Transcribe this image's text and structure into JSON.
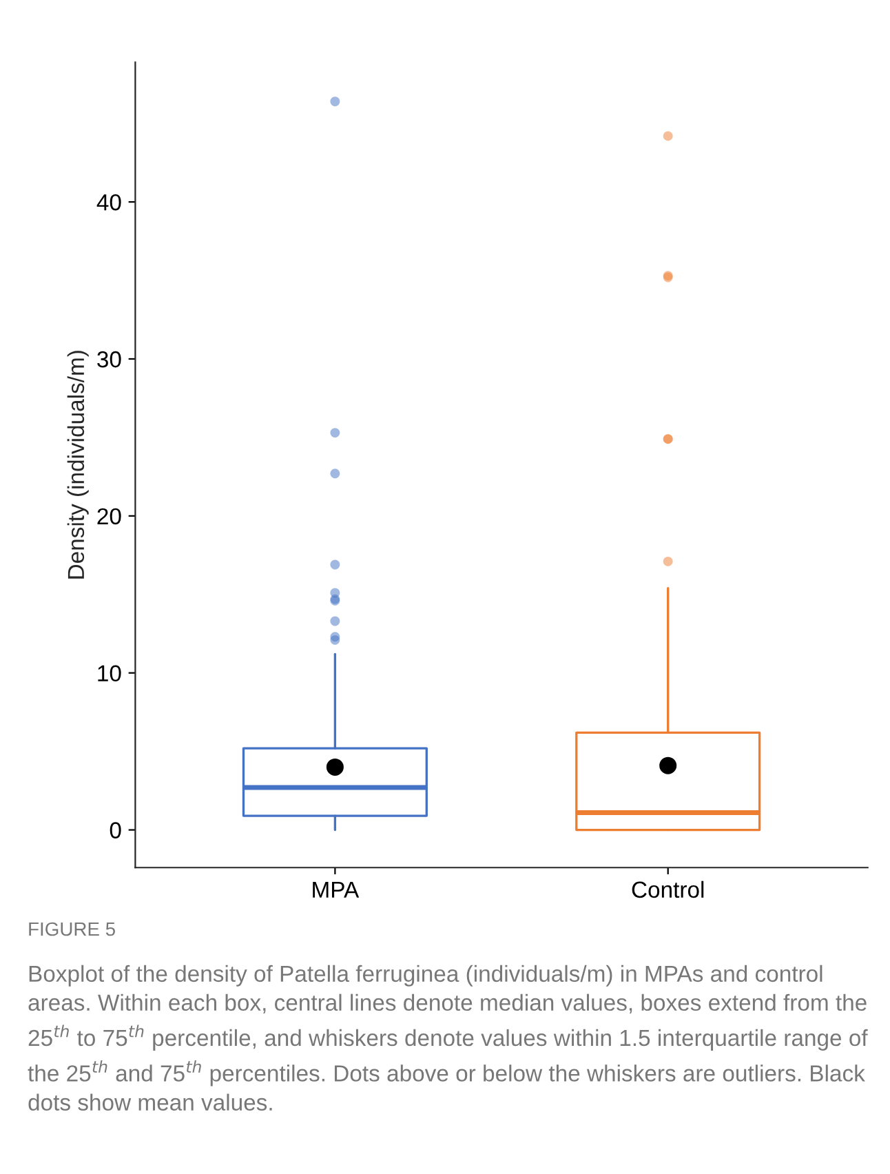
{
  "chart_data": {
    "type": "box",
    "title": "FIGURE 5",
    "ylabel": "Density (individuals/m)",
    "categories": [
      "MPA",
      "Control"
    ],
    "colors": [
      "#4472c4",
      "#ed7d31"
    ],
    "boxes": [
      {
        "low": 0,
        "q1": 0.9,
        "median": 2.7,
        "q3": 5.2,
        "high": 11.2,
        "mean": 4.0,
        "outliers": [
          46.4,
          25.3,
          22.7,
          16.9,
          15.1,
          14.7,
          14.6,
          13.3,
          12.3,
          12.1
        ]
      },
      {
        "low": 0,
        "q1": 0.0,
        "median": 1.1,
        "q3": 6.2,
        "high": 15.4,
        "mean": 4.1,
        "outliers": [
          44.2,
          35.3,
          35.2,
          24.9,
          24.9,
          17.1
        ]
      }
    ],
    "ylim": [
      -2.4,
      48.9
    ],
    "yticks": [
      0,
      10,
      20,
      30,
      40
    ],
    "grid": false,
    "annotations": [
      "Boxplot of the density of Patella ferruginea (individuals/m) in MPAs and control areas. Within each box, central lines denote median values, boxes extend from the 25$^{th}$ to 75$^{th}$ percentile, and whiskers denote values within 1.5 interquartile range of the 25$^{th}$ and 75$^{th}$ percentiles. Dots above or below the whiskers are outliers. Black dots show mean values."
    ]
  }
}
